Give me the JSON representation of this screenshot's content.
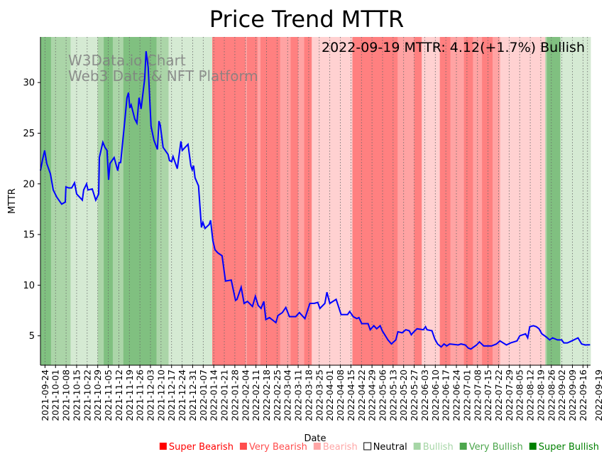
{
  "chart_data": {
    "type": "line",
    "title": "Price Trend MTTR",
    "xlabel": "Date",
    "ylabel": "MTTR",
    "ylim": [
      2.1,
      34.5
    ],
    "start_date": "2021-09-21",
    "xlim_days": [
      0,
      365
    ],
    "annotation": "2022-09-19 MTTR: 4.12(+1.7%) Bullish",
    "watermark": [
      "W3Data.io Chart",
      "Web3 Data & NFT Platform"
    ],
    "yticks": [
      5,
      10,
      15,
      20,
      25,
      30
    ],
    "xtick_first_day": 3,
    "xticks": [
      "2021-09-24",
      "2021-10-01",
      "2021-10-08",
      "2021-10-15",
      "2021-10-22",
      "2021-10-29",
      "2021-11-05",
      "2021-11-12",
      "2021-11-19",
      "2021-11-26",
      "2021-12-03",
      "2021-12-10",
      "2021-12-17",
      "2021-12-24",
      "2021-12-31",
      "2022-01-07",
      "2022-01-14",
      "2022-01-21",
      "2022-01-28",
      "2022-02-04",
      "2022-02-11",
      "2022-02-18",
      "2022-02-25",
      "2022-03-04",
      "2022-03-11",
      "2022-03-18",
      "2022-03-25",
      "2022-04-01",
      "2022-04-08",
      "2022-04-15",
      "2022-04-22",
      "2022-04-29",
      "2022-05-06",
      "2022-05-13",
      "2022-05-20",
      "2022-05-27",
      "2022-06-03",
      "2022-06-10",
      "2022-06-17",
      "2022-06-24",
      "2022-07-01",
      "2022-07-08",
      "2022-07-15",
      "2022-07-22",
      "2022-07-29",
      "2022-08-05",
      "2022-08-12",
      "2022-08-19",
      "2022-08-26",
      "2022-09-02",
      "2022-09-09",
      "2022-09-16"
    ],
    "xtick_last": {
      "label": "2022-09-19",
      "day": 363
    },
    "series": [
      {
        "name": "MTTR",
        "color": "#0000ff",
        "points": [
          [
            0,
            21.3
          ],
          [
            1.4,
            22.4
          ],
          [
            2.8,
            23.3
          ],
          [
            4.2,
            22
          ],
          [
            6.6,
            21
          ],
          [
            8.5,
            19.4
          ],
          [
            10.8,
            18.7
          ],
          [
            14.1,
            18
          ],
          [
            16.5,
            18.2
          ],
          [
            16.9,
            19.7
          ],
          [
            18.8,
            19.6
          ],
          [
            20.7,
            19.6
          ],
          [
            22.6,
            20.1
          ],
          [
            24,
            19
          ],
          [
            25.9,
            18.7
          ],
          [
            27.8,
            18.4
          ],
          [
            28.7,
            19.4
          ],
          [
            30.6,
            20
          ],
          [
            31.5,
            19.4
          ],
          [
            34.4,
            19.5
          ],
          [
            36.7,
            18.4
          ],
          [
            38.6,
            19
          ],
          [
            39.1,
            22.6
          ],
          [
            41.4,
            24.1
          ],
          [
            42.8,
            23.6
          ],
          [
            44.2,
            23.3
          ],
          [
            45.2,
            20.4
          ],
          [
            46.1,
            22
          ],
          [
            48.9,
            22.6
          ],
          [
            51.3,
            21.3
          ],
          [
            52.2,
            22.1
          ],
          [
            53.2,
            22.1
          ],
          [
            55.5,
            25.5
          ],
          [
            57.4,
            28.5
          ],
          [
            58.4,
            29
          ],
          [
            59.3,
            27.5
          ],
          [
            60.2,
            27.8
          ],
          [
            62.6,
            26.4
          ],
          [
            64,
            26
          ],
          [
            65.4,
            28.5
          ],
          [
            66.8,
            27.4
          ],
          [
            69.2,
            30.4
          ],
          [
            70.1,
            33.1
          ],
          [
            71.5,
            31.5
          ],
          [
            73.4,
            25.7
          ],
          [
            75.3,
            24.3
          ],
          [
            77.6,
            23.4
          ],
          [
            78.6,
            26.2
          ],
          [
            79.5,
            25.8
          ],
          [
            81.4,
            23.6
          ],
          [
            84.7,
            22.9
          ],
          [
            85.6,
            22.3
          ],
          [
            87.1,
            22.2
          ],
          [
            88,
            22.7
          ],
          [
            90.8,
            21.5
          ],
          [
            93.2,
            24.2
          ],
          [
            94.1,
            23.3
          ],
          [
            97.9,
            23.9
          ],
          [
            99.8,
            21.8
          ],
          [
            100.7,
            21.4
          ],
          [
            101.6,
            21.8
          ],
          [
            102.6,
            20.6
          ],
          [
            104.9,
            19.8
          ],
          [
            106.8,
            15.7
          ],
          [
            107.8,
            16.2
          ],
          [
            109.2,
            15.6
          ],
          [
            112,
            16
          ],
          [
            112.9,
            16.4
          ],
          [
            114.4,
            14.4
          ],
          [
            115.8,
            13.5
          ],
          [
            117.6,
            13.2
          ],
          [
            120.5,
            12.9
          ],
          [
            122.8,
            10.4
          ],
          [
            126.6,
            10.5
          ],
          [
            129.4,
            8.5
          ],
          [
            130.4,
            8.6
          ],
          [
            133.2,
            9.8
          ],
          [
            135.1,
            8.2
          ],
          [
            137.4,
            8.4
          ],
          [
            140.7,
            7.9
          ],
          [
            142.6,
            8.9
          ],
          [
            144.5,
            8
          ],
          [
            146.4,
            7.7
          ],
          [
            148.2,
            8.4
          ],
          [
            149.6,
            6.6
          ],
          [
            152,
            6.8
          ],
          [
            156.2,
            6.3
          ],
          [
            157.6,
            7
          ],
          [
            160.5,
            7.3
          ],
          [
            162.8,
            7.8
          ],
          [
            165.2,
            6.9
          ],
          [
            169.4,
            6.9
          ],
          [
            171.8,
            7.3
          ],
          [
            175.5,
            6.7
          ],
          [
            178.8,
            8.2
          ],
          [
            181.6,
            8.2
          ],
          [
            184,
            8.3
          ],
          [
            185.4,
            7.7
          ],
          [
            188.7,
            8.2
          ],
          [
            190.1,
            9.3
          ],
          [
            192,
            8.2
          ],
          [
            196.2,
            8.6
          ],
          [
            199.5,
            7.1
          ],
          [
            203.8,
            7.1
          ],
          [
            205.2,
            7.4
          ],
          [
            207.5,
            6.9
          ],
          [
            209.9,
            6.7
          ],
          [
            211.3,
            6.8
          ],
          [
            213.2,
            6.2
          ],
          [
            217.4,
            6.2
          ],
          [
            218.8,
            5.6
          ],
          [
            221.2,
            6
          ],
          [
            223.1,
            5.7
          ],
          [
            225.4,
            6
          ],
          [
            226.8,
            5.5
          ],
          [
            230.6,
            4.6
          ],
          [
            232.9,
            4.2
          ],
          [
            235.8,
            4.6
          ],
          [
            237.2,
            5.4
          ],
          [
            240,
            5.3
          ],
          [
            242.4,
            5.6
          ],
          [
            244.7,
            5.5
          ],
          [
            246.1,
            5.1
          ],
          [
            247.1,
            5.3
          ],
          [
            249.9,
            5.7
          ],
          [
            254.1,
            5.6
          ],
          [
            255.5,
            5.9
          ],
          [
            256.5,
            5.6
          ],
          [
            259.8,
            5.5
          ],
          [
            261.6,
            4.7
          ],
          [
            263.5,
            4.2
          ],
          [
            265.9,
            3.9
          ],
          [
            267.8,
            4.2
          ],
          [
            269.6,
            4
          ],
          [
            271.5,
            4.2
          ],
          [
            277.2,
            4.1
          ],
          [
            279.1,
            4.2
          ],
          [
            281.9,
            4.1
          ],
          [
            283.8,
            3.8
          ],
          [
            285.6,
            3.7
          ],
          [
            289.4,
            4.1
          ],
          [
            291.3,
            4.4
          ],
          [
            294.1,
            4
          ],
          [
            299.3,
            4
          ],
          [
            302.6,
            4.2
          ],
          [
            304.9,
            4.5
          ],
          [
            309.2,
            4.1
          ],
          [
            312,
            4.3
          ],
          [
            316.2,
            4.5
          ],
          [
            318.1,
            5
          ],
          [
            321.9,
            5.2
          ],
          [
            323.3,
            4.8
          ],
          [
            324.7,
            5.9
          ],
          [
            327.1,
            6
          ],
          [
            329,
            5.9
          ],
          [
            330.8,
            5.7
          ],
          [
            332.7,
            5.2
          ],
          [
            335.5,
            4.9
          ],
          [
            337.9,
            4.6
          ],
          [
            339.8,
            4.8
          ],
          [
            343.1,
            4.6
          ],
          [
            345.9,
            4.6
          ],
          [
            347.3,
            4.3
          ],
          [
            349.6,
            4.3
          ],
          [
            352.5,
            4.5
          ],
          [
            356.7,
            4.8
          ],
          [
            359.1,
            4.2
          ],
          [
            361.4,
            4.1
          ],
          [
            364.7,
            4.12
          ]
        ]
      }
    ],
    "regime_bands": [
      [
        0,
        7,
        "super_bullish"
      ],
      [
        7,
        20,
        "very_bullish"
      ],
      [
        20,
        38,
        "bullish"
      ],
      [
        38,
        42,
        "very_bullish"
      ],
      [
        42,
        48,
        "super_bullish"
      ],
      [
        48,
        55,
        "very_bullish"
      ],
      [
        55,
        58,
        "super_bullish"
      ],
      [
        58,
        68,
        "super_bullish"
      ],
      [
        68,
        77,
        "super_bullish"
      ],
      [
        77,
        85,
        "very_bullish"
      ],
      [
        85,
        114,
        "bullish"
      ],
      [
        114,
        136,
        "super_bearish"
      ],
      [
        136,
        137,
        "very_bearish"
      ],
      [
        137,
        144,
        "super_bearish"
      ],
      [
        144,
        146,
        "very_bearish"
      ],
      [
        146,
        159,
        "super_bearish"
      ],
      [
        159,
        166,
        "very_bearish"
      ],
      [
        166,
        171,
        "super_bearish"
      ],
      [
        171,
        175,
        "very_bearish"
      ],
      [
        175,
        180,
        "super_bearish"
      ],
      [
        180,
        207,
        "bearish"
      ],
      [
        207,
        237,
        "super_bearish"
      ],
      [
        237,
        248,
        "very_bearish"
      ],
      [
        248,
        253,
        "super_bearish"
      ],
      [
        253,
        265,
        "bearish"
      ],
      [
        265,
        272,
        "super_bearish"
      ],
      [
        272,
        281,
        "very_bearish"
      ],
      [
        281,
        287,
        "super_bearish"
      ],
      [
        287,
        293,
        "very_bearish"
      ],
      [
        293,
        300,
        "super_bearish"
      ],
      [
        300,
        305,
        "very_bearish"
      ],
      [
        305,
        335,
        "bearish"
      ],
      [
        335,
        336,
        "very_bullish"
      ],
      [
        336,
        345,
        "super_bullish"
      ],
      [
        345,
        365,
        "bullish"
      ]
    ],
    "band_colors": {
      "super_bearish": "#ff8080",
      "very_bearish": "#ffa3a3",
      "bearish": "#ffd1d1",
      "bullish": "#d5ead3",
      "very_bullish": "#abd5a8",
      "super_bullish": "#80c080"
    },
    "legend": [
      {
        "label": "Super Bearish",
        "color": "#ff0000",
        "text_color": "#ff0000",
        "filled": true
      },
      {
        "label": "Very Bearish",
        "color": "#ff4d4d",
        "text_color": "#ff4d4d",
        "filled": true
      },
      {
        "label": "Bearish",
        "color": "#ffa6a6",
        "text_color": "#ffa6a6",
        "filled": true
      },
      {
        "label": "Neutral",
        "color": "#000000",
        "text_color": "#000000",
        "filled": false
      },
      {
        "label": "Bullish",
        "color": "#a6d6a6",
        "text_color": "#a6d6a6",
        "filled": true
      },
      {
        "label": "Very Bullish",
        "color": "#4da64d",
        "text_color": "#4da64d",
        "filled": true
      },
      {
        "label": "Super Bullish",
        "color": "#008000",
        "text_color": "#008000",
        "filled": true
      }
    ]
  }
}
